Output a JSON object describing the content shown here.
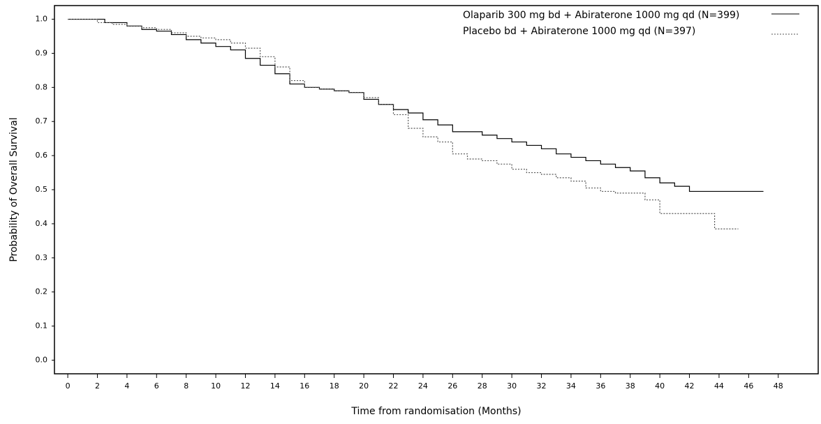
{
  "chart_data": {
    "type": "line",
    "drawstyle": "steps-post",
    "xlabel": "Time from randomisation (Months)",
    "ylabel": "Probability of Overall Survival",
    "xlim": [
      -0.9,
      50.7
    ],
    "ylim": [
      -0.04,
      1.04
    ],
    "xticks": [
      0,
      2,
      4,
      6,
      8,
      10,
      12,
      14,
      16,
      18,
      20,
      22,
      24,
      26,
      28,
      30,
      32,
      34,
      36,
      38,
      40,
      42,
      44,
      46,
      48
    ],
    "yticks": [
      {
        "value": 0,
        "label": "0.0"
      },
      0.1,
      0.2,
      0.3,
      0.4,
      0.5,
      0.6,
      0.7,
      0.8,
      0.9,
      {
        "value": 1,
        "label": "1.0"
      }
    ],
    "grid": false,
    "legend": "upper right",
    "series": [
      {
        "name": "Olaparib 300 mg bd + Abiraterone 1000 mg qd (N=399)",
        "color": "#000000",
        "dash": false,
        "x": [
          0,
          2,
          2.5,
          4,
          5,
          6,
          7,
          8,
          9,
          10,
          11,
          12,
          13,
          14,
          15,
          16,
          17,
          18,
          19,
          20,
          21,
          22,
          23,
          24,
          25,
          26,
          27,
          28,
          29,
          30,
          31,
          32,
          33,
          34,
          35,
          36,
          37,
          38,
          39,
          40,
          41,
          42,
          47
        ],
        "values": [
          1.0,
          1.0,
          0.99,
          0.98,
          0.97,
          0.965,
          0.955,
          0.94,
          0.93,
          0.92,
          0.91,
          0.885,
          0.865,
          0.84,
          0.81,
          0.8,
          0.795,
          0.79,
          0.785,
          0.765,
          0.75,
          0.735,
          0.725,
          0.705,
          0.69,
          0.67,
          0.67,
          0.66,
          0.65,
          0.64,
          0.63,
          0.62,
          0.605,
          0.595,
          0.585,
          0.575,
          0.565,
          0.555,
          0.535,
          0.52,
          0.51,
          0.495,
          0.495
        ]
      },
      {
        "name": "Placebo bd + Abiraterone 1000 mg qd (N=397)",
        "color": "#555555",
        "dash": true,
        "x": [
          0,
          2,
          3,
          4,
          5,
          6,
          7,
          8,
          9,
          10,
          11,
          12,
          13,
          14,
          15,
          16,
          17,
          18,
          19,
          20,
          21,
          22,
          23,
          24,
          25,
          26,
          27,
          28,
          29,
          30,
          31,
          32,
          33,
          34,
          35,
          36,
          37,
          38,
          39,
          40,
          43.5,
          43.7,
          45.3
        ],
        "values": [
          1.0,
          0.99,
          0.985,
          0.98,
          0.975,
          0.97,
          0.96,
          0.95,
          0.945,
          0.94,
          0.93,
          0.915,
          0.89,
          0.86,
          0.82,
          0.8,
          0.795,
          0.79,
          0.785,
          0.77,
          0.75,
          0.72,
          0.68,
          0.655,
          0.64,
          0.605,
          0.59,
          0.585,
          0.575,
          0.56,
          0.55,
          0.545,
          0.535,
          0.525,
          0.505,
          0.495,
          0.49,
          0.49,
          0.47,
          0.43,
          0.43,
          0.385,
          0.385
        ]
      }
    ]
  }
}
